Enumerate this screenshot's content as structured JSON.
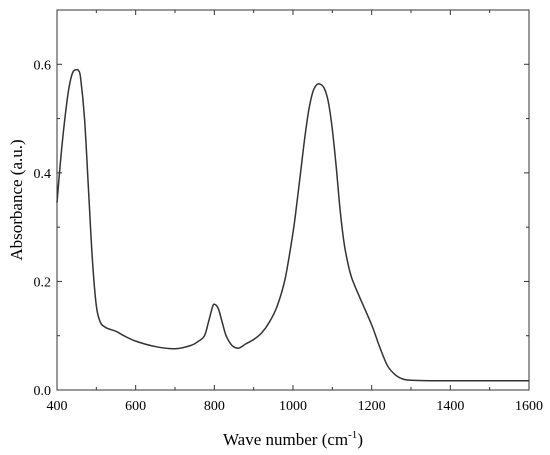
{
  "chart_data": {
    "type": "line",
    "title": "",
    "xlabel": "Wave number (cm",
    "xlabel_sup": "-1",
    "xlabel_suffix": ")",
    "ylabel": "Absorbance (a.u.)",
    "xlim": [
      400,
      1600
    ],
    "ylim": [
      0,
      0.7
    ],
    "xticks": [
      400,
      600,
      800,
      1000,
      1200,
      1400,
      1600
    ],
    "yticks": [
      0.0,
      0.2,
      0.4,
      0.6
    ],
    "ytick_labels": [
      "0.0",
      "0.2",
      "0.4",
      "0.6"
    ],
    "grid": false,
    "legend": "none",
    "colors": {
      "line": "#333333",
      "frame": "#333333"
    },
    "series": [
      {
        "x": [
          400,
          410,
          420,
          430,
          440,
          450,
          455,
          460,
          470,
          480,
          490,
          500,
          510,
          520,
          530,
          550,
          570,
          600,
          650,
          700,
          740,
          760,
          775,
          785,
          795,
          800,
          810,
          820,
          830,
          845,
          860,
          870,
          880,
          900,
          920,
          940,
          960,
          980,
          1000,
          1010,
          1020,
          1030,
          1040,
          1050,
          1060,
          1070,
          1080,
          1090,
          1100,
          1110,
          1120,
          1130,
          1140,
          1150,
          1170,
          1200,
          1220,
          1240,
          1260,
          1280,
          1300,
          1350,
          1400,
          1500,
          1600
        ],
        "y": [
          0.345,
          0.43,
          0.5,
          0.555,
          0.585,
          0.59,
          0.588,
          0.575,
          0.5,
          0.37,
          0.24,
          0.155,
          0.125,
          0.117,
          0.113,
          0.108,
          0.1,
          0.09,
          0.08,
          0.076,
          0.082,
          0.09,
          0.1,
          0.125,
          0.152,
          0.158,
          0.15,
          0.125,
          0.1,
          0.082,
          0.077,
          0.08,
          0.085,
          0.093,
          0.105,
          0.125,
          0.155,
          0.205,
          0.29,
          0.345,
          0.405,
          0.465,
          0.515,
          0.548,
          0.562,
          0.563,
          0.555,
          0.53,
          0.48,
          0.41,
          0.33,
          0.27,
          0.232,
          0.205,
          0.17,
          0.12,
          0.08,
          0.045,
          0.028,
          0.02,
          0.018,
          0.017,
          0.017,
          0.017,
          0.017
        ]
      }
    ]
  }
}
